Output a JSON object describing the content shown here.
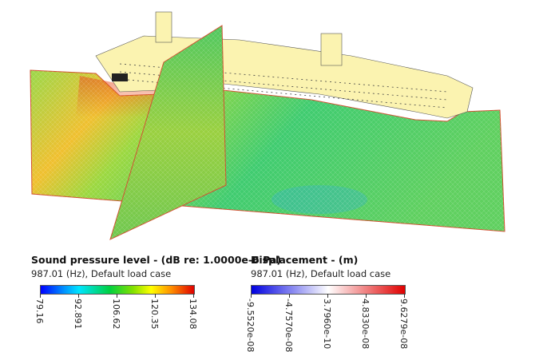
{
  "legends": [
    {
      "title": "Sound pressure level - (dB re: 1.0000e-6 Pa)",
      "subtitle": "987.01 (Hz), Default load case",
      "colormap": [
        "#0000ff",
        "#00e5ff",
        "#00d000",
        "#ffff00",
        "#ff8000",
        "#e00000"
      ],
      "ticks": [
        "79.16",
        "92.891",
        "106.62",
        "120.35",
        "134.08"
      ]
    },
    {
      "title": "Displacement - (m)",
      "subtitle": "987.01 (Hz), Default load case",
      "colormap": [
        "#0000ff",
        "#ffffff",
        "#ff0000"
      ],
      "ticks": [
        "-9.5520e-08",
        "-4.7570e-08",
        "3.7960e-10",
        "4.8330e-08",
        "9.6279e-08"
      ]
    }
  ],
  "colors": {
    "ship": "#fbf3b0",
    "plane_edge": "#d05030"
  }
}
